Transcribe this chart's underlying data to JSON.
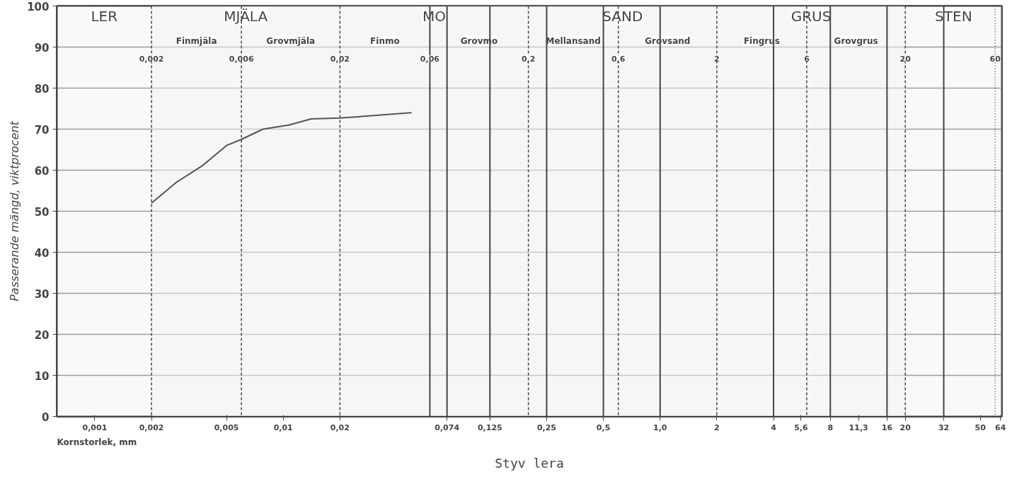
{
  "chart_data": {
    "type": "line",
    "title": "Styv lera",
    "xlabel": "Kornstorlek, mm",
    "ylabel": "Passerande mängd, viktprocent",
    "log": "x",
    "x": [
      0.002,
      0.0027,
      0.0037,
      0.005,
      0.006,
      0.0078,
      0.0107,
      0.0141,
      0.02,
      0.048
    ],
    "series": [
      {
        "color": "#555555",
        "values": [
          52,
          57,
          61,
          66,
          67.5,
          70,
          71,
          72.5,
          72.7,
          74
        ]
      }
    ],
    "xlim": [
      0.00063,
      65
    ],
    "ylim": [
      0,
      100
    ],
    "xticks": [
      {
        "value": 0.001,
        "label": "0,001"
      },
      {
        "value": 0.002,
        "label": "0,002"
      },
      {
        "value": 0.005,
        "label": "0,005"
      },
      {
        "value": 0.01,
        "label": "0,01"
      },
      {
        "value": 0.02,
        "label": "0,02"
      },
      {
        "value": 0.074,
        "label": "0,074"
      },
      {
        "value": 0.125,
        "label": "0,125"
      },
      {
        "value": 0.25,
        "label": "0,25"
      },
      {
        "value": 0.5,
        "label": "0,5"
      },
      {
        "value": 1,
        "label": "1,0"
      },
      2,
      4,
      {
        "value": 5.6,
        "label": "5,6"
      },
      8,
      {
        "value": 11.3,
        "label": "11,3"
      },
      16,
      20,
      32,
      50,
      64
    ],
    "yticks": [
      0,
      10,
      20,
      30,
      40,
      50,
      60,
      70,
      80,
      90,
      100
    ],
    "grid": "y",
    "marker": "none",
    "ref_lines": [
      {
        "axis": "x",
        "value": 0.002,
        "line_style": "dashed",
        "label": "0,002"
      },
      {
        "axis": "x",
        "value": 0.006,
        "line_style": "dashed",
        "label": "0,006"
      },
      {
        "axis": "x",
        "value": 0.02,
        "line_style": "dashed",
        "label": "0,02"
      },
      {
        "axis": "x",
        "value": 0.06,
        "line_style": "solid",
        "label": "0,06"
      },
      {
        "axis": "x",
        "value": 0.074,
        "line_style": "solid"
      },
      {
        "axis": "x",
        "value": 0.125,
        "line_style": "solid"
      },
      {
        "axis": "x",
        "value": 0.2,
        "line_style": "dashed",
        "label": "0,2"
      },
      {
        "axis": "x",
        "value": 0.25,
        "line_style": "solid"
      },
      {
        "axis": "x",
        "value": 0.5,
        "line_style": "solid"
      },
      {
        "axis": "x",
        "value": 0.6,
        "line_style": "dashed",
        "label": "0,6"
      },
      {
        "axis": "x",
        "value": 1,
        "line_style": "solid"
      },
      {
        "axis": "x",
        "value": 2,
        "line_style": "dashed",
        "label": "2"
      },
      {
        "axis": "x",
        "value": 4,
        "line_style": "solid"
      },
      {
        "axis": "x",
        "value": 6,
        "line_style": "dashed",
        "label": "6"
      },
      {
        "axis": "x",
        "value": 8,
        "line_style": "solid"
      },
      {
        "axis": "x",
        "value": 16,
        "line_style": "solid"
      },
      {
        "axis": "x",
        "value": 20,
        "line_style": "dashed",
        "label": "20"
      },
      {
        "axis": "x",
        "value": 32,
        "line_style": "solid"
      },
      {
        "axis": "x",
        "value": 60,
        "line_style": "dotted",
        "label": "60"
      }
    ],
    "bands": [
      {
        "axis": "x",
        "from": 0.00063,
        "to": 0.002,
        "label": "LER",
        "color": "#f4f4f4"
      },
      {
        "axis": "x",
        "from": 0.002,
        "to": 0.02,
        "label": "MJÄLA",
        "color": "#f4f4f4"
      },
      {
        "axis": "x",
        "from": 0.02,
        "to": 0.2,
        "label": "MO",
        "color": "#f4f4f4"
      },
      {
        "axis": "x",
        "from": 0.2,
        "to": 2,
        "label": "SAND",
        "color": "#f4f4f4"
      },
      {
        "axis": "x",
        "from": 2,
        "to": 20,
        "label": "GRUS",
        "color": "#f4f4f4"
      },
      {
        "axis": "x",
        "from": 20,
        "to": 65,
        "label": "STEN",
        "color": "#f4f4f4"
      },
      {
        "axis": "x",
        "from": 0.002,
        "to": 0.006,
        "label": "Finmjäla",
        "color": "#f4f4f4"
      },
      {
        "axis": "x",
        "from": 0.006,
        "to": 0.02,
        "label": "Grovmjäla",
        "color": "#f4f4f4"
      },
      {
        "axis": "x",
        "from": 0.02,
        "to": 0.06,
        "label": "Finmo",
        "color": "#f4f4f4"
      },
      {
        "axis": "x",
        "from": 0.06,
        "to": 0.2,
        "label": "Grovmo",
        "color": "#f4f4f4"
      },
      {
        "axis": "x",
        "from": 0.2,
        "to": 0.6,
        "label": "Mellansand",
        "color": "#f4f4f4"
      },
      {
        "axis": "x",
        "from": 0.6,
        "to": 2,
        "label": "Grovsand",
        "color": "#f4f4f4"
      },
      {
        "axis": "x",
        "from": 2,
        "to": 6,
        "label": "Fingrus",
        "color": "#f4f4f4"
      },
      {
        "axis": "x",
        "from": 6,
        "to": 20,
        "label": "Grovgrus",
        "color": "#f4f4f4"
      }
    ]
  }
}
